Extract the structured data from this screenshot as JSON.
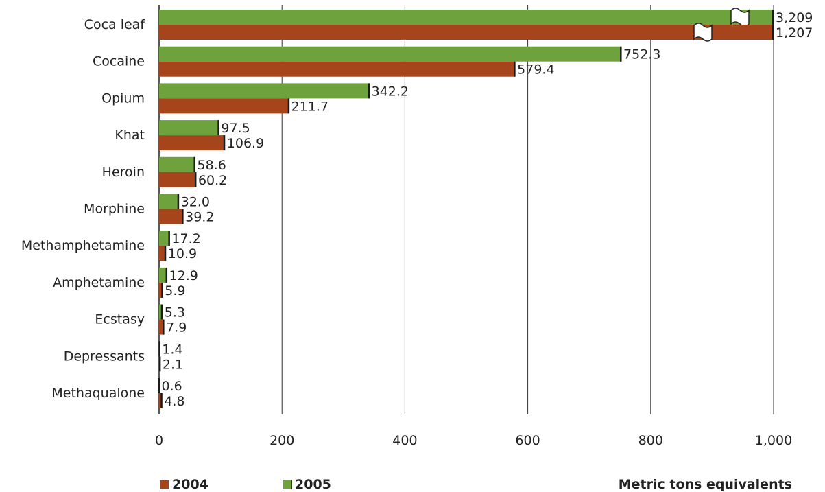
{
  "chart_data": {
    "type": "bar",
    "orientation": "horizontal",
    "categories": [
      "Coca leaf",
      "Cocaine",
      "Opium",
      "Khat",
      "Heroin",
      "Morphine",
      "Methamphetamine",
      "Amphetamine",
      "Ecstasy",
      "Depressants",
      "Methaqualone"
    ],
    "series": [
      {
        "name": "2005",
        "color": "#6ea23c",
        "values": [
          3209,
          752.3,
          342.2,
          97.5,
          58.6,
          32.0,
          17.2,
          12.9,
          5.3,
          1.4,
          0.6
        ],
        "labels": [
          "3,209",
          "752.3",
          "342.2",
          "97.5",
          "58.6",
          "32.0",
          "17.2",
          "12.9",
          "5.3",
          "1.4",
          "0.6"
        ]
      },
      {
        "name": "2004",
        "color": "#a6441c",
        "values": [
          1207,
          579.4,
          211.7,
          106.9,
          60.2,
          39.2,
          10.9,
          5.9,
          7.9,
          2.1,
          4.8
        ],
        "labels": [
          "1,207",
          "579.4",
          "211.7",
          "106.9",
          "60.2",
          "39.2",
          "10.9",
          "5.9",
          "7.9",
          "2.1",
          "4.8"
        ]
      }
    ],
    "xlim": [
      0,
      1000
    ],
    "xticks": [
      "0",
      "200",
      "400",
      "600",
      "800",
      "1,000"
    ],
    "xlabel": "Metric tons  equivalents",
    "axis_break": true,
    "grid": "vertical",
    "legend": "bottom"
  }
}
